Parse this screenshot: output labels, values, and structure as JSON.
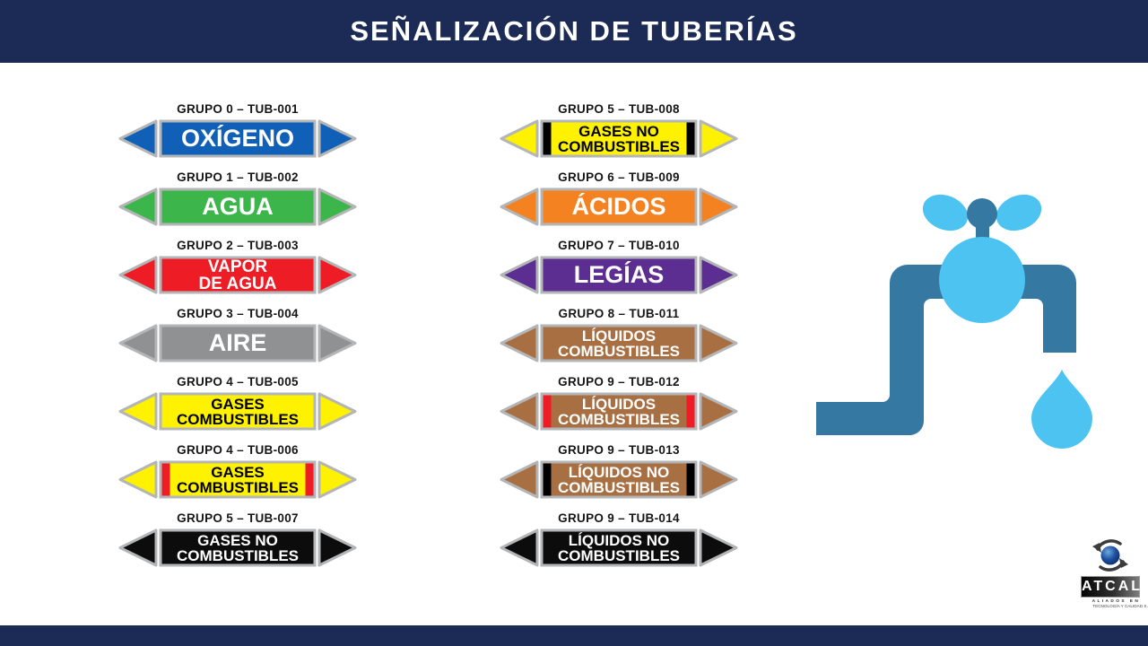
{
  "header": {
    "title": "SEÑALIZACIÓN DE TUBERÍAS"
  },
  "colors": {
    "navy": "#1c2b55",
    "arrow_border": "#b3b5b7",
    "faucet_dark": "#3578a2",
    "faucet_light": "#4cc3f0"
  },
  "columns": {
    "left": [
      {
        "group": "GRUPO 0 – TUB-001",
        "lines": [
          "OXÍGENO"
        ],
        "fill": "#1160b8",
        "text_color": "#ffffff",
        "stripe": null
      },
      {
        "group": "GRUPO 1 – TUB-002",
        "lines": [
          "AGUA"
        ],
        "fill": "#3cb54a",
        "text_color": "#ffffff",
        "stripe": null
      },
      {
        "group": "GRUPO 2 – TUB-003",
        "lines": [
          "VAPOR",
          "DE AGUA"
        ],
        "fill": "#ee1c25",
        "text_color": "#ffffff",
        "stripe": null
      },
      {
        "group": "GRUPO 3 – TUB-004",
        "lines": [
          "AIRE"
        ],
        "fill": "#8f9193",
        "text_color": "#ffffff",
        "stripe": null
      },
      {
        "group": "GRUPO 4 – TUB-005",
        "lines": [
          "GASES",
          "COMBUSTIBLES"
        ],
        "fill": "#fff200",
        "text_color": "#000000",
        "stripe": null
      },
      {
        "group": "GRUPO 4 – TUB-006",
        "lines": [
          "GASES",
          "COMBUSTIBLES"
        ],
        "fill": "#fff200",
        "text_color": "#000000",
        "stripe": "#ee1c25"
      },
      {
        "group": "GRUPO 5 – TUB-007",
        "lines": [
          "GASES NO",
          "COMBUSTIBLES"
        ],
        "fill": "#0c0c0c",
        "text_color": "#ffffff",
        "stripe": null
      }
    ],
    "right": [
      {
        "group": "GRUPO 5 – TUB-008",
        "lines": [
          "GASES NO",
          "COMBUSTIBLES"
        ],
        "fill": "#fff200",
        "text_color": "#000000",
        "stripe": "#000000"
      },
      {
        "group": "GRUPO 6 – TUB-009",
        "lines": [
          "ÁCIDOS"
        ],
        "fill": "#f58220",
        "text_color": "#ffffff",
        "stripe": null
      },
      {
        "group": "GRUPO 7 – TUB-010",
        "lines": [
          "LEGÍAS"
        ],
        "fill": "#5c2e91",
        "text_color": "#ffffff",
        "stripe": null
      },
      {
        "group": "GRUPO 8 – TUB-011",
        "lines": [
          "LÍQUIDOS",
          "COMBUSTIBLES"
        ],
        "fill": "#a86f43",
        "text_color": "#ffffff",
        "stripe": null
      },
      {
        "group": "GRUPO 9 – TUB-012",
        "lines": [
          "LÍQUIDOS",
          "COMBUSTIBLES"
        ],
        "fill": "#a86f43",
        "text_color": "#ffffff",
        "stripe": "#ee1c25"
      },
      {
        "group": "GRUPO 9 – TUB-013",
        "lines": [
          "LÍQUIDOS NO",
          "COMBUSTIBLES"
        ],
        "fill": "#a86f43",
        "text_color": "#ffffff",
        "stripe": "#000000"
      },
      {
        "group": "GRUPO 9 – TUB-014",
        "lines": [
          "LÍQUIDOS NO",
          "COMBUSTIBLES"
        ],
        "fill": "#0c0c0c",
        "text_color": "#ffffff",
        "stripe": null
      }
    ]
  },
  "logo": {
    "name": "ATCAL",
    "tagline": "ALIADOS EN",
    "subtext": "TECNOLOGÍA Y CALIDAD S.A.S."
  }
}
